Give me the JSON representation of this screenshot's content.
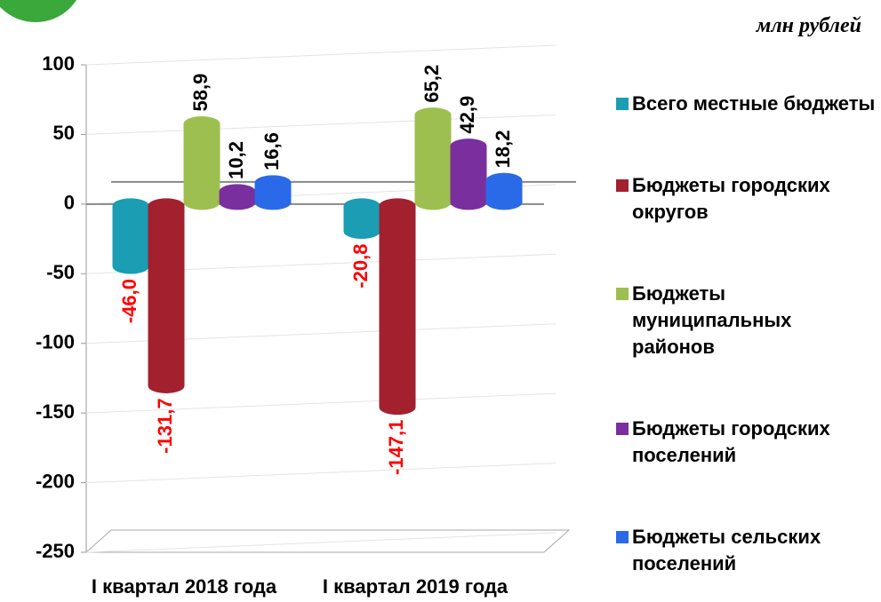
{
  "chart_data": {
    "type": "bar",
    "unit": "млн рублей",
    "categories": [
      "I квартал  2018 года",
      "I квартал  2019 года"
    ],
    "series": [
      {
        "name": "Всего местные бюджеты",
        "color": "#1b9db3",
        "values": [
          -46.0,
          -20.8
        ],
        "value_labels": [
          "-46,0",
          "-20,8"
        ]
      },
      {
        "name": "Бюджеты городских округов",
        "color": "#a3202f",
        "values": [
          -131.7,
          -147.1
        ],
        "value_labels": [
          "-131,7",
          "-147,1"
        ]
      },
      {
        "name": "Бюджеты муниципальных районов",
        "color": "#9dbf4f",
        "values": [
          58.9,
          65.2
        ],
        "value_labels": [
          "58,9",
          "65,2"
        ]
      },
      {
        "name": "Бюджеты городских поселений",
        "color": "#7a2f9e",
        "values": [
          10.2,
          42.9
        ],
        "value_labels": [
          "10,2",
          "42,9"
        ]
      },
      {
        "name": "Бюджеты сельских поселений",
        "color": "#2a6ae8",
        "values": [
          16.6,
          18.2
        ],
        "value_labels": [
          "16,6",
          "18,2"
        ]
      }
    ],
    "ylim": [
      -250,
      100
    ],
    "yticks": [
      -250,
      -200,
      -150,
      -100,
      -50,
      0,
      50,
      100
    ],
    "grid": true,
    "legend": "right",
    "negative_label_color": "#ff0000"
  }
}
